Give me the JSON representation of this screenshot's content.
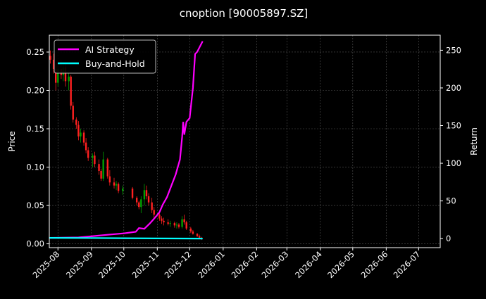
{
  "chart_data": {
    "type": "candlestick+line",
    "title": "cnoption [90005897.SZ]",
    "ylabel_left": "Price",
    "ylabel_right": "Return",
    "ylim_left": [
      -0.005,
      0.272
    ],
    "ylim_right": [
      -12,
      270
    ],
    "xlim": [
      "2025-07-24",
      "2026-07-21"
    ],
    "left_ticks": [
      "0.00",
      "0.05",
      "0.10",
      "0.15",
      "0.20",
      "0.25"
    ],
    "right_ticks": [
      "0",
      "50",
      "100",
      "150",
      "200",
      "250"
    ],
    "x_ticks": [
      "2025-08",
      "2025-09",
      "2025-10",
      "2025-11",
      "2025-12",
      "2026-01",
      "2026-02",
      "2026-03",
      "2026-04",
      "2026-05",
      "2026-06",
      "2026-07"
    ],
    "grid": true,
    "legend_placement": "top-left",
    "colors": {
      "up": "#00a000",
      "down": "#ff2020",
      "strategy": "#ff00ff",
      "buyhold": "#00ffff",
      "background": "#000000"
    },
    "candles": [
      [
        "2025-07-25",
        0.245,
        0.252,
        0.235,
        0.24
      ],
      [
        "2025-07-28",
        0.24,
        0.248,
        0.222,
        0.228
      ],
      [
        "2025-07-30",
        0.228,
        0.236,
        0.2,
        0.21
      ],
      [
        "2025-08-01",
        0.21,
        0.232,
        0.205,
        0.228
      ],
      [
        "2025-08-04",
        0.228,
        0.24,
        0.215,
        0.22
      ],
      [
        "2025-08-06",
        0.22,
        0.235,
        0.212,
        0.23
      ],
      [
        "2025-08-08",
        0.23,
        0.236,
        0.205,
        0.212
      ],
      [
        "2025-08-11",
        0.212,
        0.222,
        0.2,
        0.218
      ],
      [
        "2025-08-13",
        0.218,
        0.22,
        0.175,
        0.18
      ],
      [
        "2025-08-15",
        0.18,
        0.185,
        0.158,
        0.162
      ],
      [
        "2025-08-18",
        0.162,
        0.165,
        0.15,
        0.155
      ],
      [
        "2025-08-20",
        0.155,
        0.16,
        0.135,
        0.14
      ],
      [
        "2025-08-22",
        0.14,
        0.15,
        0.132,
        0.145
      ],
      [
        "2025-08-25",
        0.145,
        0.148,
        0.128,
        0.132
      ],
      [
        "2025-08-27",
        0.132,
        0.138,
        0.118,
        0.122
      ],
      [
        "2025-08-29",
        0.122,
        0.126,
        0.108,
        0.112
      ],
      [
        "2025-09-02",
        0.112,
        0.118,
        0.1,
        0.115
      ],
      [
        "2025-09-04",
        0.115,
        0.12,
        0.1,
        0.104
      ],
      [
        "2025-09-08",
        0.104,
        0.11,
        0.09,
        0.095
      ],
      [
        "2025-09-10",
        0.095,
        0.098,
        0.082,
        0.085
      ],
      [
        "2025-09-12",
        0.085,
        0.12,
        0.082,
        0.11
      ],
      [
        "2025-09-16",
        0.11,
        0.112,
        0.085,
        0.088
      ],
      [
        "2025-09-18",
        0.088,
        0.096,
        0.076,
        0.08
      ],
      [
        "2025-09-22",
        0.08,
        0.086,
        0.072,
        0.076
      ],
      [
        "2025-09-24",
        0.076,
        0.082,
        0.07,
        0.078
      ],
      [
        "2025-09-26",
        0.078,
        0.08,
        0.066,
        0.069
      ],
      [
        "2025-09-30",
        0.069,
        0.076,
        0.064,
        0.072
      ],
      [
        "2025-10-09",
        0.072,
        0.074,
        0.058,
        0.06
      ],
      [
        "2025-10-13",
        0.06,
        0.062,
        0.05,
        0.054
      ],
      [
        "2025-10-15",
        0.054,
        0.056,
        0.045,
        0.048
      ],
      [
        "2025-10-17",
        0.048,
        0.062,
        0.04,
        0.058
      ],
      [
        "2025-10-20",
        0.058,
        0.078,
        0.05,
        0.07
      ],
      [
        "2025-10-22",
        0.07,
        0.076,
        0.058,
        0.062
      ],
      [
        "2025-10-24",
        0.062,
        0.066,
        0.05,
        0.054
      ],
      [
        "2025-10-27",
        0.054,
        0.06,
        0.04,
        0.044
      ],
      [
        "2025-10-29",
        0.044,
        0.048,
        0.034,
        0.038
      ],
      [
        "2025-11-03",
        0.038,
        0.042,
        0.03,
        0.033
      ],
      [
        "2025-11-05",
        0.033,
        0.036,
        0.026,
        0.03
      ],
      [
        "2025-11-07",
        0.03,
        0.034,
        0.024,
        0.028
      ],
      [
        "2025-11-11",
        0.028,
        0.032,
        0.024,
        0.026
      ],
      [
        "2025-11-13",
        0.026,
        0.03,
        0.022,
        0.027
      ],
      [
        "2025-11-17",
        0.027,
        0.029,
        0.021,
        0.024
      ],
      [
        "2025-11-19",
        0.024,
        0.028,
        0.02,
        0.025
      ],
      [
        "2025-11-21",
        0.025,
        0.027,
        0.02,
        0.022
      ],
      [
        "2025-11-24",
        0.022,
        0.036,
        0.02,
        0.032
      ],
      [
        "2025-11-26",
        0.032,
        0.038,
        0.025,
        0.028
      ],
      [
        "2025-11-28",
        0.028,
        0.03,
        0.018,
        0.02
      ],
      [
        "2025-12-02",
        0.02,
        0.022,
        0.014,
        0.016
      ],
      [
        "2025-12-04",
        0.016,
        0.018,
        0.012,
        0.013
      ],
      [
        "2025-12-08",
        0.013,
        0.014,
        0.009,
        0.01
      ],
      [
        "2025-12-10",
        0.01,
        0.012,
        0.007,
        0.008
      ],
      [
        "2025-12-12",
        0.008,
        0.009,
        0.005,
        0.006
      ]
    ],
    "series": [
      {
        "name": "AI Strategy",
        "points": [
          [
            "2025-07-24",
            1
          ],
          [
            "2025-08-20",
            1.5
          ],
          [
            "2025-09-01",
            3
          ],
          [
            "2025-09-15",
            5
          ],
          [
            "2025-10-01",
            7
          ],
          [
            "2025-10-12",
            9
          ],
          [
            "2025-10-15",
            14
          ],
          [
            "2025-10-20",
            13
          ],
          [
            "2025-10-25",
            20
          ],
          [
            "2025-10-30",
            28
          ],
          [
            "2025-11-03",
            35
          ],
          [
            "2025-11-06",
            45
          ],
          [
            "2025-11-10",
            55
          ],
          [
            "2025-11-14",
            70
          ],
          [
            "2025-11-18",
            85
          ],
          [
            "2025-11-22",
            105
          ],
          [
            "2025-11-24",
            135
          ],
          [
            "2025-11-25",
            155
          ],
          [
            "2025-11-26",
            138
          ],
          [
            "2025-11-28",
            155
          ],
          [
            "2025-12-01",
            160
          ],
          [
            "2025-12-04",
            200
          ],
          [
            "2025-12-06",
            245
          ],
          [
            "2025-12-08",
            248
          ],
          [
            "2025-12-13",
            262
          ]
        ]
      },
      {
        "name": "Buy-and-Hold",
        "points": [
          [
            "2025-07-24",
            1
          ],
          [
            "2025-09-01",
            0.8
          ],
          [
            "2025-10-01",
            0.5
          ],
          [
            "2025-11-01",
            0.2
          ],
          [
            "2025-12-13",
            0.03
          ]
        ]
      }
    ]
  }
}
